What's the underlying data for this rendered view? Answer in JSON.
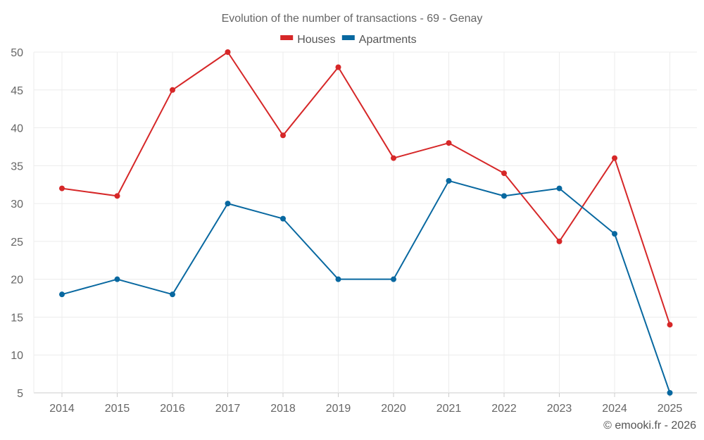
{
  "chart_data": {
    "type": "line",
    "title": "Evolution of the number of transactions - 69 - Genay",
    "xlabel": "",
    "ylabel": "",
    "categories": [
      "2014",
      "2015",
      "2016",
      "2017",
      "2018",
      "2019",
      "2020",
      "2021",
      "2022",
      "2023",
      "2024",
      "2025"
    ],
    "ylim": [
      5,
      50
    ],
    "yticks": [
      5,
      10,
      15,
      20,
      25,
      30,
      35,
      40,
      45,
      50
    ],
    "grid": true,
    "legend_position": "top-center",
    "series": [
      {
        "name": "Houses",
        "color": "#d62728",
        "values": [
          32,
          31,
          45,
          50,
          39,
          48,
          36,
          38,
          34,
          25,
          36,
          14
        ]
      },
      {
        "name": "Apartments",
        "color": "#0868a0",
        "values": [
          18,
          20,
          18,
          30,
          28,
          20,
          20,
          33,
          31,
          32,
          26,
          5
        ]
      }
    ]
  },
  "credit": "© emooki.fr - 2026"
}
